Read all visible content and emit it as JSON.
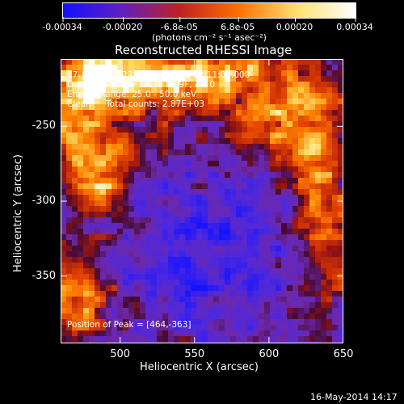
{
  "colorbar": {
    "tick_labels": [
      "-0.00034",
      "-0.00020",
      "-6.8e-05",
      "6.8e-05",
      "0.00020",
      "0.00034"
    ],
    "tick_values": [
      -0.00034,
      -0.0002,
      -6.8e-05,
      6.8e-05,
      0.0002,
      0.00034
    ],
    "range": [
      -0.00034,
      0.00034
    ],
    "units_label": "(photons cm⁻² s⁻¹ asec⁻²)",
    "colors": [
      "#1010ff",
      "#6020c0",
      "#c02020",
      "#ff7000",
      "#ffe070",
      "#ffffff"
    ]
  },
  "chart_data": {
    "type": "heatmap",
    "title": "Reconstructed RHESSI Image",
    "xlabel": "Heliocentric X (arcsec)",
    "ylabel": "Heliocentric Y (arcsec)",
    "xlim": [
      460,
      650
    ],
    "ylim": [
      -395,
      -205
    ],
    "x_ticks": [
      "500",
      "550",
      "600",
      "650"
    ],
    "x_tick_values": [
      500,
      550,
      600,
      650
    ],
    "y_ticks": [
      "-250",
      "-300",
      "-350"
    ],
    "y_tick_values": [
      -250,
      -300,
      -350
    ],
    "annotations": {
      "time_range": "17-Jun-2012 22:08:48.000 to 22:11:00.000",
      "detectors": "Detectors: 3F 5F 6F 7F 8F 9F, Att 0",
      "energy": "Energy Range: 25.0 - 50.0 keV",
      "clean": "Clean",
      "total_counts": "Total counts: 2.87E+03",
      "peak": "Position of Peak = [464,-363]"
    },
    "peak_position": [
      464,
      -363
    ]
  },
  "footer": {
    "timestamp": "16-May-2014 14:17"
  }
}
